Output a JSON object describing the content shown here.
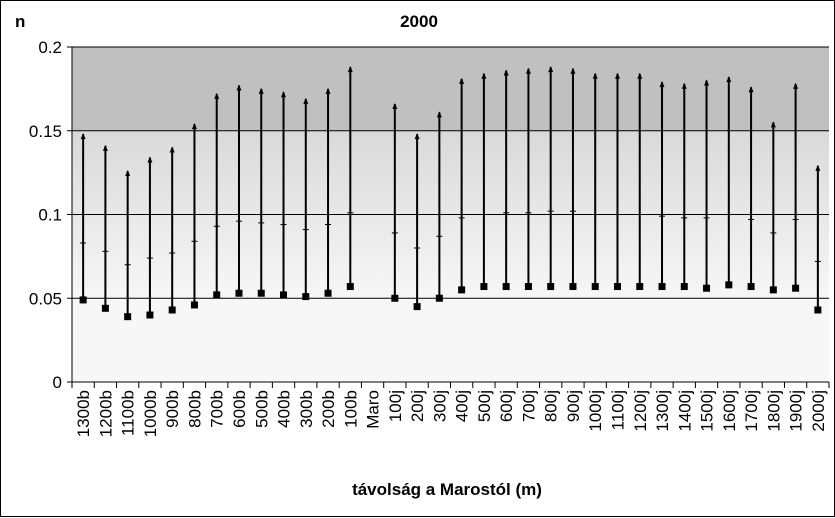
{
  "chart_data": {
    "type": "high-low-close",
    "title": "2000",
    "ylabel": "n",
    "xlabel": "távolság a Marostól (m)",
    "ylim": [
      0,
      0.2
    ],
    "yticks": [
      "0",
      "0.05",
      "0.1",
      "0.15",
      "0.2"
    ],
    "ytick_values": [
      0,
      0.05,
      0.1,
      0.15,
      0.2
    ],
    "grid": true,
    "background_bands": [
      {
        "from": 0.15,
        "to": 0.2,
        "color": "#c0c0c0"
      },
      {
        "from": 0.05,
        "to": 0.15,
        "color": "gradient"
      },
      {
        "from": 0.0,
        "to": 0.05,
        "color": "#f7f7f7"
      }
    ],
    "categories": [
      "1300b",
      "1200b",
      "1100b",
      "1000b",
      "900b",
      "800b",
      "700b",
      "600b",
      "500b",
      "400b",
      "300b",
      "200b",
      "100b",
      "Maro",
      "100j",
      "200j",
      "300j",
      "400j",
      "500j",
      "600j",
      "700j",
      "800j",
      "900j",
      "1000j",
      "1100j",
      "1200j",
      "1300j",
      "1400j",
      "1500j",
      "1600j",
      "1700j",
      "1800j",
      "1900j",
      "2000j"
    ],
    "series": [
      {
        "role": "high",
        "values": [
          0.148,
          0.141,
          0.126,
          0.134,
          0.14,
          0.154,
          0.172,
          0.177,
          0.175,
          0.173,
          0.169,
          0.175,
          0.188,
          null,
          0.166,
          0.148,
          0.161,
          0.181,
          0.184,
          0.186,
          0.187,
          0.188,
          0.187,
          0.184,
          0.184,
          0.184,
          0.179,
          0.178,
          0.18,
          0.182,
          0.176,
          0.155,
          0.178,
          0.129
        ]
      },
      {
        "role": "mean",
        "values": [
          0.083,
          0.078,
          0.07,
          0.074,
          0.077,
          0.084,
          0.093,
          0.096,
          0.095,
          0.094,
          0.091,
          0.094,
          0.101,
          null,
          0.089,
          0.08,
          0.087,
          0.098,
          0.1,
          0.101,
          0.101,
          0.102,
          0.102,
          0.1,
          0.1,
          0.1,
          0.099,
          0.098,
          0.098,
          0.1,
          0.097,
          0.089,
          0.097,
          0.072
        ]
      },
      {
        "role": "low",
        "values": [
          0.049,
          0.044,
          0.039,
          0.04,
          0.043,
          0.046,
          0.052,
          0.053,
          0.053,
          0.052,
          0.051,
          0.053,
          0.057,
          null,
          0.05,
          0.045,
          0.05,
          0.055,
          0.057,
          0.057,
          0.057,
          0.057,
          0.057,
          0.057,
          0.057,
          0.057,
          0.057,
          0.057,
          0.056,
          0.058,
          0.057,
          0.055,
          0.056,
          0.043
        ]
      }
    ]
  }
}
